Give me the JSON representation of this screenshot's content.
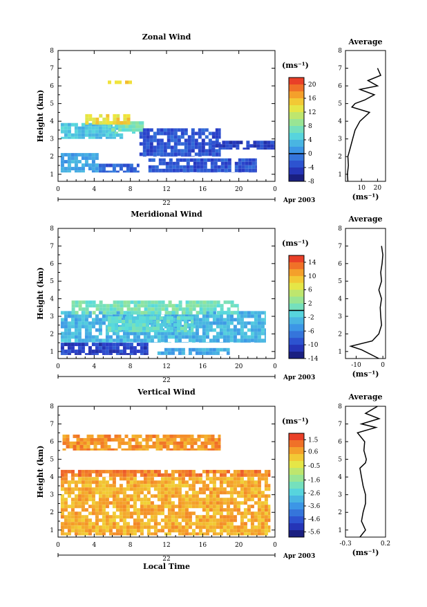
{
  "chart_data": [
    {
      "type": "heatmap",
      "title": "Zonal Wind",
      "ylabel": "Height (km)",
      "x_ticks": [
        "0",
        "4",
        "8",
        "12",
        "16",
        "20",
        "0"
      ],
      "xlim": [
        0,
        24
      ],
      "y_ticks": [
        "1",
        "2",
        "3",
        "4",
        "5",
        "6",
        "7",
        "8"
      ],
      "ylim": [
        0.6,
        8.0
      ],
      "date_day": "22",
      "date_month": "Apr 2003",
      "colorbar": {
        "unit": "(ms⁻¹)",
        "range": [
          -8,
          22
        ],
        "ticks": [
          "20",
          "16",
          "12",
          "8",
          "4",
          "0",
          "-4",
          "-8"
        ],
        "tick_values": [
          20,
          16,
          12,
          8,
          4,
          0,
          -4,
          -8
        ],
        "zero_line": 0
      },
      "regions": [
        {
          "t": [
            0.3,
            7.2
          ],
          "h": [
            3.0,
            3.9
          ],
          "value": 4
        },
        {
          "t": [
            0.3,
            4.5
          ],
          "h": [
            1.1,
            2.2
          ],
          "value": 2
        },
        {
          "t": [
            4.5,
            9.0
          ],
          "h": [
            1.1,
            1.6
          ],
          "value": -2
        },
        {
          "t": [
            5.5,
            9.5
          ],
          "h": [
            3.3,
            4.0
          ],
          "value": 7
        },
        {
          "t": [
            9.0,
            18.0
          ],
          "h": [
            2.0,
            3.6
          ],
          "value": -3
        },
        {
          "t": [
            17.0,
            24.0
          ],
          "h": [
            2.4,
            2.9
          ],
          "value": -4
        },
        {
          "t": [
            10.0,
            22.0
          ],
          "h": [
            1.1,
            1.9
          ],
          "value": -3
        },
        {
          "t": [
            3.0,
            8.0
          ],
          "h": [
            3.8,
            4.4
          ],
          "value": 14
        },
        {
          "t": [
            5.5,
            8.5
          ],
          "h": [
            6.1,
            6.3
          ],
          "value": 14
        }
      ],
      "average_panel": {
        "title": "Average",
        "xlabel": "(ms⁻¹)",
        "x_ticks": [
          "10",
          "20"
        ],
        "xlim": [
          0,
          25
        ],
        "profile": [
          [
            0.6,
            1.5
          ],
          [
            1.0,
            1.2
          ],
          [
            1.5,
            1.8
          ],
          [
            2.0,
            1.5
          ],
          [
            2.5,
            3.0
          ],
          [
            3.0,
            4.5
          ],
          [
            3.5,
            6.0
          ],
          [
            4.0,
            9.0
          ],
          [
            4.5,
            15.0
          ],
          [
            4.8,
            4.0
          ],
          [
            5.0,
            6.0
          ],
          [
            5.2,
            12.0
          ],
          [
            5.5,
            18.0
          ],
          [
            5.8,
            9.0
          ],
          [
            6.0,
            20.0
          ],
          [
            6.3,
            14.0
          ],
          [
            6.6,
            22.0
          ],
          [
            7.0,
            20.0
          ]
        ]
      }
    },
    {
      "type": "heatmap",
      "title": "Meridional Wind",
      "ylabel": "Height (km)",
      "x_ticks": [
        "0",
        "4",
        "8",
        "12",
        "16",
        "20",
        "0"
      ],
      "xlim": [
        0,
        24
      ],
      "y_ticks": [
        "1",
        "2",
        "3",
        "4",
        "5",
        "6",
        "7",
        "8"
      ],
      "ylim": [
        0.6,
        8.0
      ],
      "date_day": "22",
      "date_month": "Apr 2003",
      "colorbar": {
        "unit": "(ms⁻¹)",
        "range": [
          -14,
          16
        ],
        "ticks": [
          "14",
          "10",
          "6",
          "2",
          "-2",
          "-6",
          "-10",
          "-14"
        ],
        "tick_values": [
          14,
          10,
          6,
          2,
          -2,
          -6,
          -10,
          -14
        ],
        "zero_line": 0
      },
      "regions": [
        {
          "t": [
            0.3,
            23.0
          ],
          "h": [
            1.5,
            3.3
          ],
          "value": -3
        },
        {
          "t": [
            1.5,
            20.0
          ],
          "h": [
            3.1,
            3.9
          ],
          "value": 1
        },
        {
          "t": [
            5.5,
            15.0
          ],
          "h": [
            2.1,
            3.0
          ],
          "value": 0
        },
        {
          "t": [
            0.3,
            10.0
          ],
          "h": [
            0.8,
            1.5
          ],
          "value": -10
        },
        {
          "t": [
            11.0,
            19.0
          ],
          "h": [
            0.8,
            1.2
          ],
          "value": -4
        }
      ],
      "average_panel": {
        "title": "Average",
        "xlabel": "(ms⁻¹)",
        "x_ticks": [
          "-10",
          "0"
        ],
        "xlim": [
          -14,
          1
        ],
        "profile": [
          [
            0.6,
            -1.5
          ],
          [
            1.1,
            -8.0
          ],
          [
            1.3,
            -12.0
          ],
          [
            1.6,
            -4.0
          ],
          [
            2.0,
            -1.5
          ],
          [
            2.5,
            -0.5
          ],
          [
            3.0,
            -0.8
          ],
          [
            3.5,
            -1.0
          ],
          [
            4.0,
            -0.5
          ],
          [
            4.5,
            -1.5
          ],
          [
            5.0,
            -0.5
          ],
          [
            5.5,
            -0.8
          ],
          [
            6.0,
            -0.3
          ],
          [
            6.5,
            0.0
          ],
          [
            7.0,
            -0.5
          ]
        ]
      }
    },
    {
      "type": "heatmap",
      "title": "Vertical Wind",
      "ylabel": "Height (km)",
      "xlabel": "Local Time",
      "x_ticks": [
        "0",
        "4",
        "8",
        "12",
        "16",
        "20",
        "0"
      ],
      "xlim": [
        0,
        24
      ],
      "y_ticks": [
        "1",
        "2",
        "3",
        "4",
        "5",
        "6",
        "7",
        "8"
      ],
      "ylim": [
        0.6,
        8.0
      ],
      "date_day": "22",
      "date_month": "Apr 2003",
      "colorbar": {
        "unit": "(ms⁻¹)",
        "range": [
          -6.0,
          2.0
        ],
        "ticks": [
          "1.5",
          "0.6",
          "-0.5",
          "-1.6",
          "-2.6",
          "-3.6",
          "-4.6",
          "-5.6"
        ],
        "tick_values": [
          1.5,
          0.6,
          -0.5,
          -1.6,
          -2.6,
          -3.6,
          -4.6,
          -5.6
        ]
      },
      "regions": [
        {
          "t": [
            0.3,
            23.5
          ],
          "h": [
            0.7,
            4.0
          ],
          "value": 0.5
        },
        {
          "t": [
            0.5,
            18.0
          ],
          "h": [
            5.5,
            6.4
          ],
          "value": 0.8
        },
        {
          "t": [
            0.3,
            23.5
          ],
          "h": [
            4.0,
            4.4
          ],
          "value": 1.0
        }
      ],
      "average_panel": {
        "title": "Average",
        "xlabel": "(ms⁻¹)",
        "x_ticks": [
          "-0.3",
          "0.2"
        ],
        "xlim": [
          -0.3,
          0.2
        ],
        "profile": [
          [
            0.6,
            -0.12
          ],
          [
            1.0,
            -0.05
          ],
          [
            1.5,
            -0.1
          ],
          [
            2.0,
            -0.08
          ],
          [
            2.5,
            -0.05
          ],
          [
            3.0,
            -0.05
          ],
          [
            3.5,
            -0.08
          ],
          [
            4.0,
            -0.1
          ],
          [
            4.5,
            -0.12
          ],
          [
            4.8,
            -0.05
          ],
          [
            5.0,
            -0.04
          ],
          [
            5.5,
            -0.07
          ],
          [
            6.0,
            -0.06
          ],
          [
            6.5,
            -0.15
          ],
          [
            6.8,
            0.08
          ],
          [
            7.0,
            -0.1
          ],
          [
            7.3,
            0.12
          ],
          [
            7.6,
            -0.05
          ],
          [
            8.0,
            0.1
          ]
        ]
      }
    }
  ]
}
